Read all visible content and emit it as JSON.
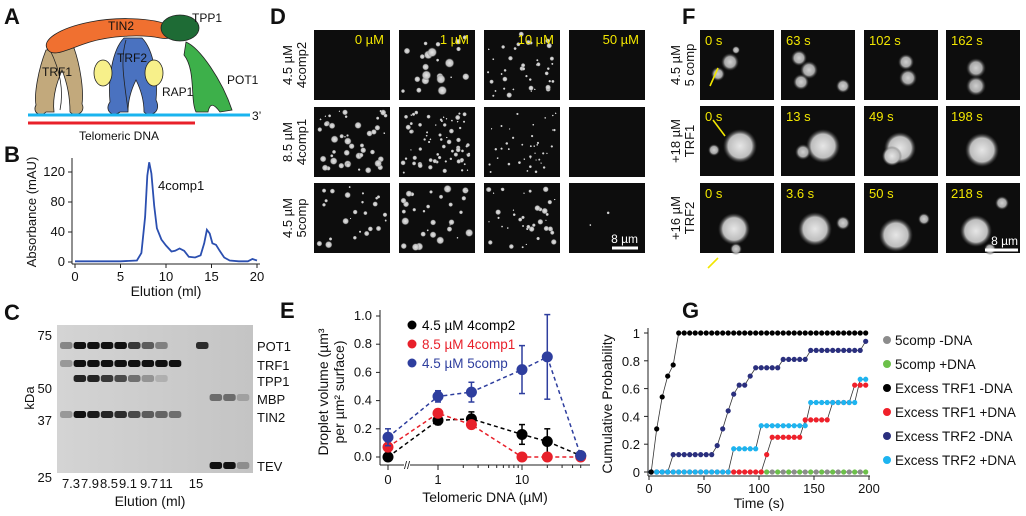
{
  "panels": {
    "A": {
      "label": "A",
      "proteins": [
        "TIN2",
        "TPP1",
        "TRF1",
        "TRF2",
        "RAP1",
        "POT1"
      ],
      "dna_label": "Telomeric DNA",
      "end_label": "3’",
      "colors": {
        "TIN2": "#f07030",
        "TPP1": "#1e6b35",
        "TRF1": "#c2a97c",
        "TRF2": "#4a72c0",
        "RAP1": "#f7f08a",
        "POT1": "#3db04a",
        "dna": "#19b4ef",
        "dna_bar": "#e8202a"
      }
    },
    "B": {
      "label": "B",
      "annotation": "4comp1"
    },
    "C": {
      "label": "C",
      "ylabel": "kDa",
      "mw_ticks": [
        "75",
        "50",
        "37",
        "25"
      ],
      "lanes": [
        "7.3",
        "7.9",
        "8.5",
        "9.1",
        "9.7",
        "11",
        "15"
      ],
      "xlabel": "Elution (ml)",
      "bands": [
        "POT1",
        "TRF1",
        "TPP1",
        "MBP",
        "TIN2",
        "TEV"
      ]
    },
    "D": {
      "label": "D",
      "columns": [
        "0 µM",
        "1 µM",
        "10 µM",
        "50 µM"
      ],
      "rows": [
        [
          "4.5 µM",
          "4comp2"
        ],
        [
          "8.5 µM",
          "4comp1"
        ],
        [
          "4.5 µM",
          "5comp"
        ]
      ],
      "scale_bar": "8 µm"
    },
    "E": {
      "label": "E"
    },
    "F": {
      "label": "F",
      "rows": [
        {
          "label": [
            "4.5 µM",
            "5 comp"
          ],
          "times": [
            "0 s",
            "63 s",
            "102 s",
            "162 s"
          ]
        },
        {
          "label": [
            "+18 µM",
            "TRF1"
          ],
          "times": [
            "0 s",
            "13 s",
            "49 s",
            "198 s"
          ]
        },
        {
          "label": [
            "+16 µM",
            "TRF2"
          ],
          "times": [
            "0 s",
            "3.6 s",
            "50 s",
            "218 s"
          ]
        }
      ],
      "scale_bar": "8 µm"
    },
    "G": {
      "label": "G"
    }
  },
  "chart_data": [
    {
      "id": "B",
      "type": "line",
      "xlabel": "Elution (ml)",
      "ylabel": "Absorbance (mAU)",
      "xlim": [
        0,
        20
      ],
      "ylim": [
        0,
        140
      ],
      "xticks": [
        "0",
        "5",
        "10",
        "15",
        "20"
      ],
      "yticks": [
        "0",
        "40",
        "80",
        "120"
      ],
      "color": "#2b4fb0",
      "x": [
        0,
        5,
        6.8,
        7.3,
        7.7,
        7.95,
        8.15,
        8.4,
        8.7,
        9.0,
        9.5,
        10.0,
        10.6,
        11.0,
        11.5,
        12.0,
        12.5,
        13.2,
        13.8,
        14.2,
        14.5,
        14.8,
        15.1,
        15.5,
        15.9,
        16.4,
        17,
        18,
        19,
        19.5,
        20
      ],
      "y": [
        1,
        1,
        2,
        12,
        60,
        115,
        133,
        118,
        75,
        45,
        30,
        22,
        14,
        15,
        18,
        15,
        7,
        6,
        9,
        25,
        43,
        38,
        25,
        23,
        15,
        6,
        2,
        1,
        1,
        4,
        2
      ]
    },
    {
      "id": "E",
      "type": "scatter",
      "xlabel": "Telomeric DNA (µM)",
      "ylabel": "Droplet volume (µm³ per µm² surface)",
      "ylabel_lines": [
        "Droplet volume (µm³",
        "per µm² surface)"
      ],
      "xscale": "log (with break at 0)",
      "xticks": [
        "0",
        "1",
        "10"
      ],
      "yticks": [
        "0.0",
        "0.2",
        "0.4",
        "0.6",
        "0.8",
        "1.0"
      ],
      "ylim": [
        0,
        1.05
      ],
      "legend": "top-left",
      "x": [
        0,
        1,
        2.5,
        10,
        20,
        50
      ],
      "series": [
        {
          "name": "4.5 µM 4comp2",
          "color": "#000000",
          "values": [
            0,
            0.26,
            0.27,
            0.16,
            0.11,
            0.01
          ],
          "errors": [
            0.01,
            0.03,
            0.05,
            0.07,
            0.09,
            0
          ]
        },
        {
          "name": "8.5 µM 4comp1",
          "color": "#e8202a",
          "values": [
            0.07,
            0.31,
            0.23,
            0,
            0,
            0
          ],
          "errors": [
            0.03,
            0.02,
            0.02,
            0,
            0,
            0
          ]
        },
        {
          "name": "4.5 µM 5comp",
          "color": "#2e3e9e",
          "values": [
            0.14,
            0.43,
            0.46,
            0.62,
            0.71,
            0.01
          ],
          "errors": [
            0.06,
            0.04,
            0.07,
            0.17,
            0.3,
            0
          ]
        }
      ]
    },
    {
      "id": "G",
      "type": "line",
      "xlabel": "Time (s)",
      "ylabel": "Cumulative Probability",
      "xlim": [
        0,
        200
      ],
      "ylim": [
        0,
        1
      ],
      "xticks": [
        "0",
        "50",
        "100",
        "150",
        "200"
      ],
      "yticks": [
        "0",
        "0.2",
        "0.4",
        "0.6",
        "0.8",
        "1"
      ],
      "legend": "right",
      "x": [
        2,
        7,
        12,
        17,
        22,
        27,
        32,
        37,
        42,
        47,
        52,
        57,
        62,
        67,
        72,
        77,
        82,
        87,
        92,
        97,
        102,
        107,
        112,
        117,
        122,
        127,
        132,
        137,
        142,
        147,
        152,
        157,
        162,
        167,
        172,
        177,
        182,
        187,
        192,
        197
      ],
      "series": [
        {
          "name": "5comp -DNA",
          "color": "#8c8c8c",
          "values": [
            0,
            0,
            0,
            0,
            0,
            0,
            0,
            0,
            0,
            0,
            0,
            0,
            0,
            0,
            0,
            0,
            0,
            0,
            0,
            0,
            0,
            0,
            0,
            0,
            0,
            0,
            0,
            0,
            0,
            0,
            0,
            0,
            0,
            0,
            0,
            0,
            0,
            0,
            0,
            0
          ]
        },
        {
          "name": "5comp +DNA",
          "color": "#6cc04a",
          "values": [
            0,
            0,
            0,
            0,
            0,
            0,
            0,
            0,
            0,
            0,
            0,
            0,
            0,
            0,
            0,
            0,
            0,
            0,
            0,
            0,
            0,
            0,
            0,
            0,
            0,
            0,
            0,
            0,
            0,
            0,
            0,
            0,
            0,
            0,
            0,
            0,
            0,
            0,
            0,
            0
          ]
        },
        {
          "name": "Excess TRF1 -DNA",
          "color": "#000000",
          "values": [
            0,
            0.31,
            0.54,
            0.69,
            0.77,
            1,
            1,
            1,
            1,
            1,
            1,
            1,
            1,
            1,
            1,
            1,
            1,
            1,
            1,
            1,
            1,
            1,
            1,
            1,
            1,
            1,
            1,
            1,
            1,
            1,
            1,
            1,
            1,
            1,
            1,
            1,
            1,
            1,
            1,
            1
          ]
        },
        {
          "name": "Excess TRF1 +DNA",
          "color": "#f0202a",
          "values": [
            0,
            0,
            0,
            0,
            0,
            0,
            0,
            0,
            0,
            0,
            0,
            0,
            0,
            0,
            0,
            0,
            0,
            0,
            0,
            0,
            0,
            0.125,
            0.25,
            0.25,
            0.25,
            0.25,
            0.25,
            0.25,
            0.375,
            0.375,
            0.375,
            0.375,
            0.375,
            0.5,
            0.5,
            0.5,
            0.5,
            0.625,
            0.625,
            0.625
          ]
        },
        {
          "name": "Excess TRF2 -DNA",
          "color": "#2a2f7e",
          "values": [
            0,
            0,
            0,
            0,
            0.125,
            0.125,
            0.125,
            0.125,
            0.125,
            0.125,
            0.125,
            0.125,
            0.19,
            0.31,
            0.44,
            0.56,
            0.625,
            0.625,
            0.69,
            0.75,
            0.75,
            0.75,
            0.75,
            0.75,
            0.81,
            0.81,
            0.81,
            0.81,
            0.81,
            0.875,
            0.875,
            0.875,
            0.875,
            0.875,
            0.875,
            0.875,
            0.875,
            0.875,
            0.875,
            0.94
          ]
        },
        {
          "name": "Excess TRF2 +DNA",
          "color": "#1db4f0",
          "values": [
            0,
            0,
            0,
            0,
            0,
            0,
            0,
            0,
            0,
            0,
            0,
            0,
            0,
            0,
            0,
            0.167,
            0.167,
            0.167,
            0.167,
            0.167,
            0.333,
            0.333,
            0.333,
            0.333,
            0.333,
            0.333,
            0.333,
            0.333,
            0.333,
            0.5,
            0.5,
            0.5,
            0.5,
            0.5,
            0.5,
            0.5,
            0.5,
            0.5,
            0.667,
            0.667
          ]
        }
      ]
    }
  ]
}
